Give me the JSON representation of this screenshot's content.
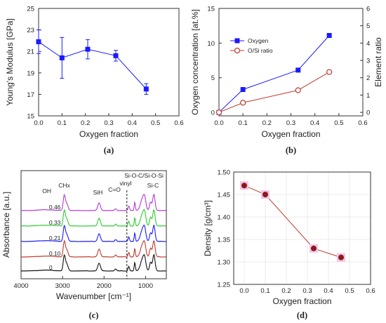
{
  "figure": {
    "panels": [
      {
        "label": "(a)"
      },
      {
        "label": "(b)"
      },
      {
        "label": "(c)"
      },
      {
        "label": "(d)"
      }
    ]
  },
  "chart_data": [
    {
      "type": "line",
      "panel": "(a)",
      "xlabel": "Oxygen fraction",
      "ylabel": "Young's Modulus [GPa]",
      "xlim": [
        0.0,
        0.6
      ],
      "ylim": [
        15,
        25
      ],
      "xticks": [
        "0.0",
        "0.1",
        "0.2",
        "0.3",
        "0.4",
        "0.5",
        "0.6"
      ],
      "yticks": [
        "15",
        "17",
        "19",
        "21",
        "23",
        "25"
      ],
      "grid": false,
      "series": [
        {
          "color": "#1a1aff",
          "marker": "square",
          "x": [
            0.0,
            0.1,
            0.21,
            0.33,
            0.46
          ],
          "y": [
            21.9,
            20.4,
            21.2,
            20.6,
            17.5
          ],
          "err": [
            1.1,
            1.9,
            0.9,
            0.5,
            0.5
          ]
        }
      ]
    },
    {
      "type": "line",
      "panel": "(b)",
      "xlabel": "Oxygen fraction",
      "ylabel": "Oxygen concentration [at.%]",
      "y2label": "Element ratio",
      "xlim": [
        0.0,
        0.6
      ],
      "ylim": [
        -0.5,
        15
      ],
      "y2lim": [
        -0.2,
        6
      ],
      "xticks": [
        "0.0",
        "0.1",
        "0.2",
        "0.3",
        "0.4",
        "0.5",
        "0.6"
      ],
      "yticks": [
        "0",
        "5",
        "10",
        "15"
      ],
      "y2ticks": [
        "0",
        "1",
        "2",
        "3",
        "4",
        "5",
        "6"
      ],
      "legend_position": "upper-left",
      "grid": false,
      "series": [
        {
          "name": "Oxygen",
          "axis": "left",
          "color": "#1a1aff",
          "marker": "square",
          "x": [
            0.0,
            0.1,
            0.33,
            0.46
          ],
          "y": [
            0.0,
            3.3,
            6.1,
            11.1
          ]
        },
        {
          "name": "O/Si ratio",
          "axis": "right",
          "color": "#c0392b",
          "marker": "open-circle",
          "x": [
            0.0,
            0.1,
            0.33,
            0.46
          ],
          "y": [
            0.0,
            0.56,
            1.28,
            2.33
          ]
        }
      ]
    },
    {
      "type": "line",
      "panel": "(c)",
      "xlabel": "Wavenumber [cm⁻¹]",
      "ylabel": "Absorbance [a.u.]",
      "xlim": [
        4000,
        500
      ],
      "xticks": [
        "4000",
        "3000",
        "2000",
        "1000"
      ],
      "grid": false,
      "dashed_line_x": 1450,
      "annotations": [
        "OH",
        "CHx",
        "SiH",
        "C=O",
        "vinyl",
        "Si-O-C/Si-O-Si",
        "Si-C"
      ],
      "series": [
        {
          "name": "0",
          "color": "#111111"
        },
        {
          "name": "0.10",
          "color": "#c0392b"
        },
        {
          "name": "0.21",
          "color": "#1a1aff"
        },
        {
          "name": "0.33",
          "color": "#2ecc2e"
        },
        {
          "name": "0.46",
          "color": "#b33cd6"
        }
      ]
    },
    {
      "type": "line",
      "panel": "(d)",
      "xlabel": "Oxygen fraction",
      "ylabel": "Density [g/cm³]",
      "xlim": [
        -0.05,
        0.6
      ],
      "ylim": [
        1.25,
        1.5
      ],
      "xticks": [
        "0.0",
        "0.1",
        "0.2",
        "0.3",
        "0.4",
        "0.5",
        "0.6"
      ],
      "yticks": [
        "1.25",
        "1.30",
        "1.35",
        "1.40",
        "1.45",
        "1.50"
      ],
      "grid": true,
      "series": [
        {
          "color": "#8b1a1a",
          "marker": "circle",
          "x": [
            0.0,
            0.1,
            0.33,
            0.46
          ],
          "y": [
            1.47,
            1.45,
            1.33,
            1.31
          ]
        }
      ]
    }
  ]
}
